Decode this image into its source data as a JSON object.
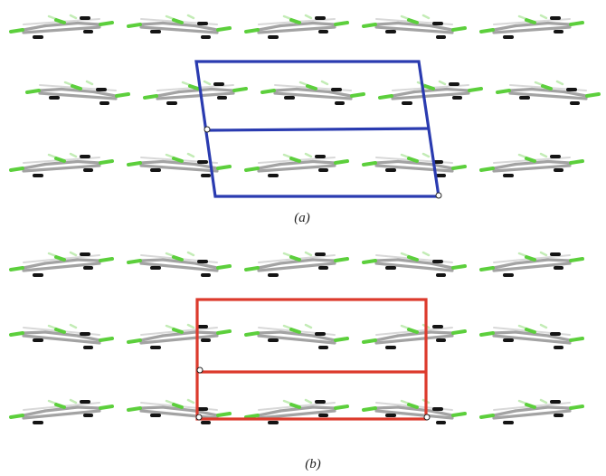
{
  "panels": [
    {
      "id": "a",
      "caption": "(a)",
      "cell_color": "#2a3bb0",
      "row_count": 3,
      "molecules_per_row": 5
    },
    {
      "id": "b",
      "caption": "(b)",
      "cell_color": "#dc3a2c",
      "row_count": 3,
      "molecules_per_row": 5
    }
  ],
  "colors": {
    "carbon_bond": "#a3a3a3",
    "fluorine": "#5ccf3c",
    "hydrogen": "#141414",
    "background": "#ffffff"
  }
}
